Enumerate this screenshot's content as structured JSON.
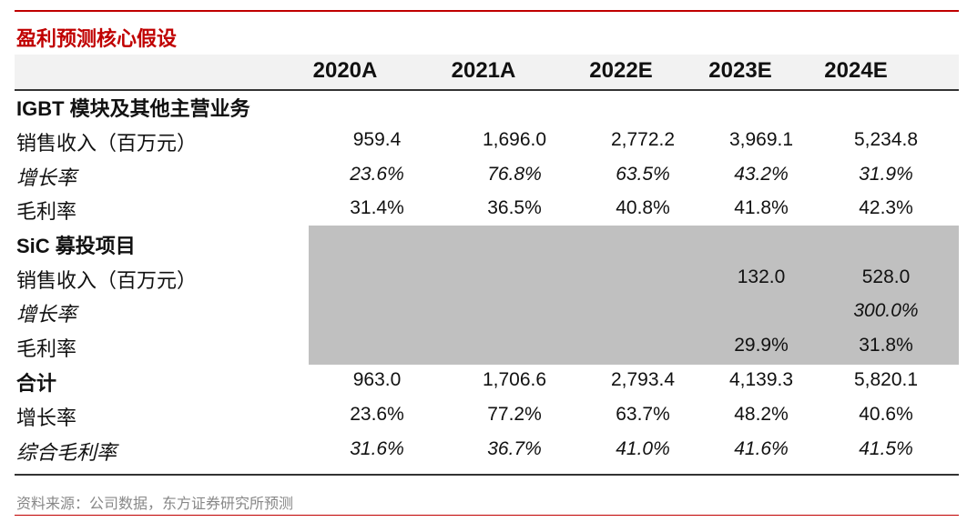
{
  "title": "盈利预测核心假设",
  "columns": [
    "2020A",
    "2021A",
    "2022E",
    "2023E",
    "2024E"
  ],
  "sections": [
    {
      "heading": "IGBT 模块及其他主营业务",
      "rows": [
        {
          "label": "销售收入（百万元）",
          "italic": false,
          "values": [
            "959.4",
            "1,696.0",
            "2,772.2",
            "3,969.1",
            "5,234.8"
          ]
        },
        {
          "label": "增长率",
          "italic": true,
          "values": [
            "23.6%",
            "76.8%",
            "63.5%",
            "43.2%",
            "31.9%"
          ]
        },
        {
          "label": "毛利率",
          "italic": false,
          "values": [
            "31.4%",
            "36.5%",
            "40.8%",
            "41.8%",
            "42.3%"
          ]
        }
      ]
    },
    {
      "heading": "SiC 募投项目",
      "rows": [
        {
          "label": "销售收入（百万元）",
          "italic": false,
          "values": [
            "",
            "",
            "",
            "132.0",
            "528.0"
          ]
        },
        {
          "label": "增长率",
          "italic": true,
          "values": [
            "",
            "",
            "",
            "",
            "300.0%"
          ]
        },
        {
          "label": "毛利率",
          "italic": false,
          "values": [
            "",
            "",
            "",
            "29.9%",
            "31.8%"
          ]
        }
      ]
    },
    {
      "heading": "合计",
      "heading_values": [
        "963.0",
        "1,706.6",
        "2,793.4",
        "4,139.3",
        "5,820.1"
      ],
      "rows": [
        {
          "label": "增长率",
          "italic": false,
          "values": [
            "23.6%",
            "77.2%",
            "63.7%",
            "48.2%",
            "40.6%"
          ]
        },
        {
          "label": "综合毛利率",
          "italic": true,
          "values": [
            "31.6%",
            "36.7%",
            "41.0%",
            "41.6%",
            "41.5%"
          ]
        }
      ]
    }
  ],
  "source": "资料来源：公司数据，东方证券研究所预测",
  "colors": {
    "accent": "#c00000",
    "header_band": "#f2f2f2",
    "shaded_block": "#c0c0c0"
  }
}
